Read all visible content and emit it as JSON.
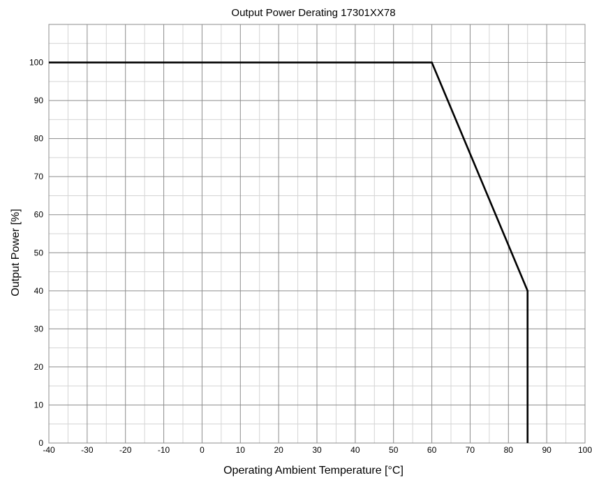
{
  "chart_data": {
    "type": "line",
    "title": "Output Power Derating 17301XX78",
    "xlabel": "Operating Ambient Temperature [°C]",
    "ylabel": "Output Power [%]",
    "xlim": [
      -40,
      100
    ],
    "ylim": [
      0,
      110
    ],
    "x_ticks": [
      -40,
      -30,
      -20,
      -10,
      0,
      10,
      20,
      30,
      40,
      50,
      60,
      70,
      80,
      90,
      100
    ],
    "y_ticks": [
      0,
      10,
      20,
      30,
      40,
      50,
      60,
      70,
      80,
      90,
      100
    ],
    "x_minor_step": 5,
    "y_minor_step": 5,
    "grid": true,
    "legend": "none",
    "series": [
      {
        "color": "#000000",
        "x": [
          -40,
          60,
          85,
          85
        ],
        "y": [
          100,
          100,
          40,
          0
        ]
      }
    ]
  }
}
